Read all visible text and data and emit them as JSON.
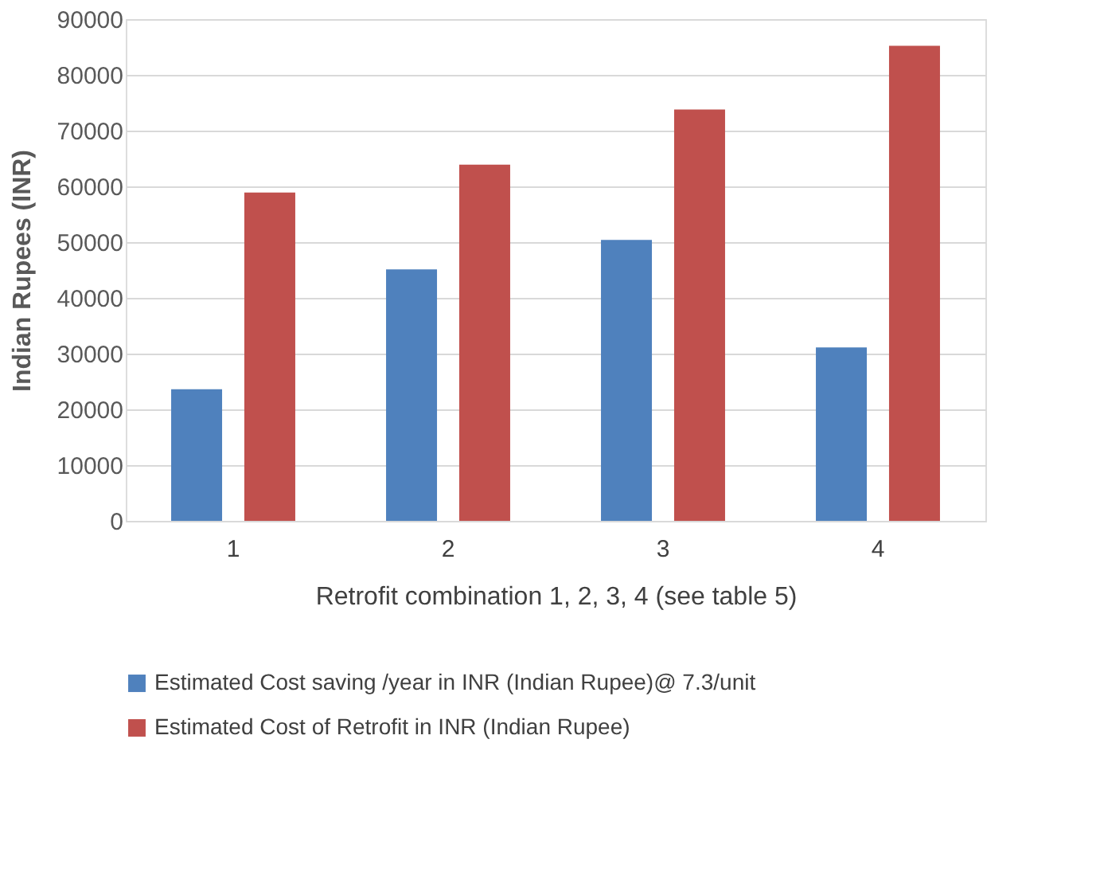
{
  "chart_data": {
    "type": "bar",
    "categories": [
      "1",
      "2",
      "3",
      "4"
    ],
    "xlabel": "Retrofit combination 1, 2, 3, 4 (see table 5)",
    "ylabel": "Indian Rupees (INR)",
    "series": [
      {
        "name": "Estimated Cost saving /year in INR (Indian Rupee)@ 7.3/unit",
        "color": "#4f81bd",
        "values": [
          23600,
          45100,
          50400,
          31100
        ]
      },
      {
        "name": "Estimated Cost of Retrofit in INR (Indian Rupee)",
        "color": "#c0504d",
        "values": [
          58900,
          63900,
          73800,
          85200
        ]
      }
    ],
    "ylim": [
      0,
      90000
    ],
    "yticks": [
      0,
      10000,
      20000,
      30000,
      40000,
      50000,
      60000,
      70000,
      80000,
      90000
    ],
    "grid": "y",
    "legend": "bottom"
  }
}
